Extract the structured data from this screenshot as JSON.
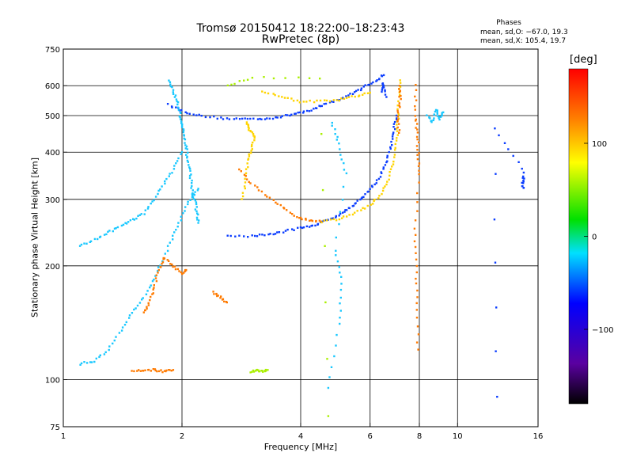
{
  "header": {
    "title": "Tromsø 20150412 18:22:00–18:23:43",
    "subtitle": "RwPretec (8p)"
  },
  "stats": {
    "title": "Phases",
    "o_line": "mean, sd,O: −67.0, 19.3",
    "x_line": "mean, sd,X: 105.4, 19.7"
  },
  "colorbar": {
    "unit": "[deg]",
    "range": [
      -180,
      180
    ],
    "ticks": [
      100,
      0,
      -100
    ],
    "tick_labels": [
      "100",
      "0",
      "−100"
    ]
  },
  "chart_data": {
    "type": "scatter",
    "xlabel": "Frequency [MHz]",
    "ylabel": "Stationary phase Virtual Height [km]",
    "xscale": "log",
    "yscale": "log",
    "xlim": [
      1,
      16
    ],
    "ylim": [
      75,
      750
    ],
    "x_ticks": [
      1,
      2,
      4,
      6,
      8,
      10,
      16
    ],
    "x_tick_labels": [
      "1",
      "2",
      "4",
      "6",
      "8",
      "10",
      "16"
    ],
    "y_ticks": [
      75,
      100,
      200,
      300,
      400,
      500,
      600,
      750
    ],
    "y_tick_labels": [
      "75",
      "100",
      "200",
      "300",
      "400",
      "500",
      "600",
      "750"
    ],
    "grid": true,
    "series": [
      {
        "color": "#0a3cff",
        "points": [
          [
            1.85,
            535
          ],
          [
            2.0,
            515
          ],
          [
            2.2,
            500
          ],
          [
            2.5,
            492
          ],
          [
            2.8,
            490
          ],
          [
            3.1,
            490
          ],
          [
            3.4,
            493
          ],
          [
            3.7,
            500
          ],
          [
            4.0,
            510
          ],
          [
            4.3,
            520
          ],
          [
            4.6,
            535
          ],
          [
            5.0,
            552
          ],
          [
            5.4,
            572
          ],
          [
            5.8,
            595
          ],
          [
            6.2,
            618
          ],
          [
            6.5,
            640
          ]
        ]
      },
      {
        "color": "#0a3cff",
        "points": [
          [
            2.6,
            240
          ],
          [
            3.0,
            240
          ],
          [
            3.3,
            242
          ],
          [
            3.6,
            246
          ],
          [
            4.0,
            252
          ],
          [
            4.3,
            256
          ],
          [
            4.6,
            262
          ],
          [
            4.9,
            270
          ],
          [
            5.2,
            280
          ],
          [
            5.5,
            292
          ],
          [
            5.8,
            306
          ],
          [
            6.1,
            325
          ],
          [
            6.4,
            350
          ],
          [
            6.6,
            380
          ],
          [
            6.8,
            420
          ],
          [
            6.9,
            460
          ],
          [
            7.0,
            500
          ]
        ]
      },
      {
        "color": "#ffd400",
        "points": [
          [
            2.85,
            300
          ],
          [
            2.9,
            340
          ],
          [
            2.95,
            380
          ],
          [
            3.0,
            410
          ],
          [
            3.05,
            440
          ],
          [
            2.95,
            460
          ],
          [
            2.92,
            480
          ]
        ]
      },
      {
        "color": "#ffd400",
        "points": [
          [
            3.2,
            580
          ],
          [
            3.6,
            560
          ],
          [
            4.0,
            545
          ],
          [
            4.5,
            545
          ],
          [
            5.0,
            550
          ],
          [
            5.5,
            562
          ],
          [
            6.0,
            575
          ]
        ]
      },
      {
        "color": "#ff7a00",
        "points": [
          [
            2.8,
            360
          ],
          [
            3.0,
            330
          ],
          [
            3.3,
            305
          ],
          [
            3.6,
            285
          ],
          [
            3.9,
            270
          ],
          [
            4.2,
            263
          ],
          [
            4.5,
            262
          ]
        ]
      },
      {
        "color": "#ffd400",
        "points": [
          [
            4.5,
            262
          ],
          [
            5.0,
            266
          ],
          [
            5.5,
            276
          ],
          [
            6.0,
            290
          ],
          [
            6.4,
            310
          ],
          [
            6.7,
            340
          ],
          [
            6.9,
            380
          ],
          [
            7.0,
            430
          ],
          [
            7.05,
            480
          ],
          [
            7.1,
            560
          ],
          [
            7.15,
            620
          ]
        ]
      },
      {
        "color": "#19c8ff",
        "points": [
          [
            1.1,
            225
          ],
          [
            1.2,
            235
          ],
          [
            1.3,
            245
          ],
          [
            1.4,
            255
          ],
          [
            1.5,
            265
          ],
          [
            1.6,
            275
          ],
          [
            1.7,
            300
          ],
          [
            1.8,
            330
          ],
          [
            1.9,
            360
          ],
          [
            2.0,
            400
          ]
        ]
      },
      {
        "color": "#19c8ff",
        "points": [
          [
            1.1,
            110
          ],
          [
            1.2,
            112
          ],
          [
            1.3,
            120
          ],
          [
            1.4,
            135
          ],
          [
            1.5,
            150
          ],
          [
            1.6,
            165
          ],
          [
            1.7,
            185
          ],
          [
            1.8,
            210
          ],
          [
            1.9,
            240
          ],
          [
            2.0,
            270
          ],
          [
            2.1,
            300
          ],
          [
            2.2,
            320
          ]
        ]
      },
      {
        "color": "#19c8ff",
        "points": [
          [
            1.85,
            620
          ],
          [
            1.9,
            580
          ],
          [
            1.95,
            540
          ],
          [
            1.98,
            500
          ],
          [
            2.0,
            470
          ],
          [
            2.02,
            440
          ],
          [
            2.05,
            410
          ],
          [
            2.07,
            380
          ],
          [
            2.1,
            350
          ],
          [
            2.12,
            320
          ],
          [
            2.15,
            300
          ],
          [
            2.18,
            280
          ],
          [
            2.2,
            260
          ]
        ]
      },
      {
        "color": "#ff7a00",
        "points": [
          [
            1.6,
            150
          ],
          [
            1.65,
            160
          ],
          [
            1.7,
            175
          ],
          [
            1.75,
            195
          ],
          [
            1.8,
            210
          ],
          [
            1.9,
            200
          ],
          [
            2.0,
            190
          ],
          [
            2.05,
            195
          ]
        ]
      },
      {
        "color": "#ff7a00",
        "points": [
          [
            1.5,
            105
          ],
          [
            1.6,
            106
          ],
          [
            1.7,
            106
          ],
          [
            1.8,
            105
          ],
          [
            1.9,
            106
          ]
        ]
      },
      {
        "color": "#ff7a00",
        "points": [
          [
            2.4,
            170
          ],
          [
            2.5,
            165
          ],
          [
            2.6,
            160
          ]
        ]
      },
      {
        "color": "#aaf000",
        "points": [
          [
            3.0,
            105
          ],
          [
            3.1,
            106
          ],
          [
            3.2,
            105
          ],
          [
            3.3,
            106
          ]
        ]
      },
      {
        "color": "#0a3cff",
        "points": [
          [
            6.4,
            580
          ],
          [
            6.5,
            610
          ],
          [
            6.6,
            560
          ]
        ]
      },
      {
        "color": "#ff7a00",
        "points": [
          [
            7.8,
            600
          ],
          [
            7.85,
            500
          ],
          [
            7.9,
            450
          ],
          [
            7.95,
            400
          ],
          [
            8.0,
            350
          ],
          [
            7.8,
            250
          ],
          [
            7.85,
            200
          ],
          [
            7.9,
            160
          ],
          [
            7.95,
            120
          ]
        ]
      },
      {
        "color": "#ff7a00",
        "points": [
          [
            7.1,
            600
          ],
          [
            7.15,
            550
          ],
          [
            7.05,
            500
          ],
          [
            7.1,
            450
          ]
        ]
      },
      {
        "color": "#19c8ff",
        "points": [
          [
            8.4,
            500
          ],
          [
            8.6,
            480
          ],
          [
            8.8,
            520
          ],
          [
            9.0,
            490
          ],
          [
            9.2,
            510
          ]
        ]
      },
      {
        "color": "#0a3cff",
        "points": [
          [
            14.6,
            340
          ],
          [
            14.7,
            320
          ],
          [
            14.65,
            360
          ],
          [
            12.4,
            460
          ],
          [
            12.6,
            90
          ]
        ]
      },
      {
        "color": "#19c8ff",
        "points": [
          [
            4.8,
            480
          ],
          [
            5.0,
            420
          ],
          [
            5.2,
            350
          ],
          [
            4.9,
            220
          ],
          [
            5.1,
            180
          ],
          [
            5.0,
            140
          ],
          [
            4.7,
            95
          ]
        ]
      },
      {
        "color": "#aaf000",
        "points": [
          [
            2.6,
            600
          ],
          [
            3.0,
            630
          ],
          [
            4.5,
            630
          ],
          [
            4.7,
            80
          ]
        ]
      }
    ]
  }
}
